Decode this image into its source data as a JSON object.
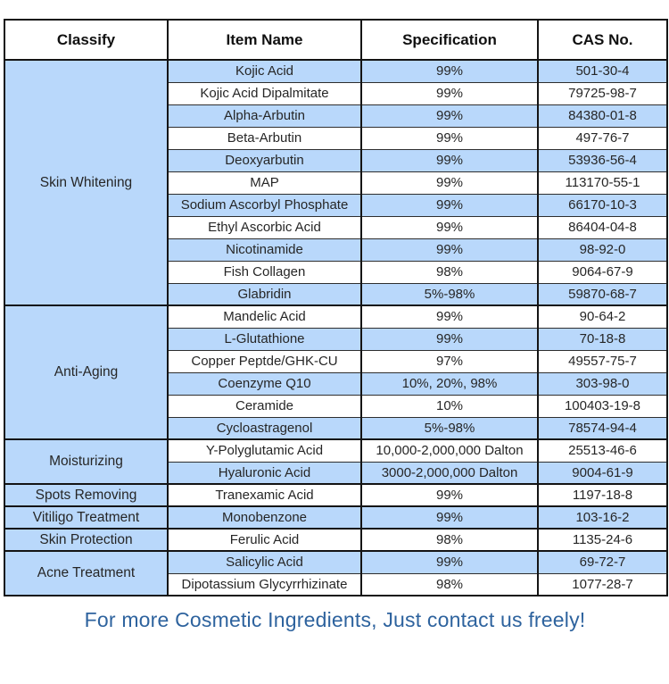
{
  "table": {
    "columns": [
      "Classify",
      "Item Name",
      "Specification",
      "CAS No."
    ],
    "groups": [
      {
        "classify": "Skin Whitening",
        "rows": [
          [
            "Kojic Acid",
            "99%",
            "501-30-4"
          ],
          [
            "Kojic Acid Dipalmitate",
            "99%",
            "79725-98-7"
          ],
          [
            "Alpha-Arbutin",
            "99%",
            "84380-01-8"
          ],
          [
            "Beta-Arbutin",
            "99%",
            "497-76-7"
          ],
          [
            "Deoxyarbutin",
            "99%",
            "53936-56-4"
          ],
          [
            "MAP",
            "99%",
            "113170-55-1"
          ],
          [
            "Sodium Ascorbyl Phosphate",
            "99%",
            "66170-10-3"
          ],
          [
            "Ethyl Ascorbic Acid",
            "99%",
            "86404-04-8"
          ],
          [
            "Nicotinamide",
            "99%",
            "98-92-0"
          ],
          [
            "Fish Collagen",
            "98%",
            "9064-67-9"
          ],
          [
            "Glabridin",
            "5%-98%",
            "59870-68-7"
          ]
        ]
      },
      {
        "classify": "Anti-Aging",
        "rows": [
          [
            "Mandelic Acid",
            "99%",
            "90-64-2"
          ],
          [
            "L-Glutathione",
            "99%",
            "70-18-8"
          ],
          [
            "Copper Peptde/GHK-CU",
            "97%",
            "49557-75-7"
          ],
          [
            "Coenzyme Q10",
            "10%, 20%, 98%",
            "303-98-0"
          ],
          [
            "Ceramide",
            "10%",
            "100403-19-8"
          ],
          [
            "Cycloastragenol",
            "5%-98%",
            "78574-94-4"
          ]
        ]
      },
      {
        "classify": "Moisturizing",
        "rows": [
          [
            "Y-Polyglutamic Acid",
            "10,000-2,000,000 Dalton",
            "25513-46-6"
          ],
          [
            "Hyaluronic Acid",
            "3000-2,000,000 Dalton",
            "9004-61-9"
          ]
        ]
      },
      {
        "classify": "Spots Removing",
        "rows": [
          [
            "Tranexamic Acid",
            "99%",
            "1197-18-8"
          ]
        ]
      },
      {
        "classify": "Vitiligo Treatment",
        "rows": [
          [
            "Monobenzone",
            "99%",
            "103-16-2"
          ]
        ]
      },
      {
        "classify": "Skin Protection",
        "rows": [
          [
            "Ferulic Acid",
            "98%",
            "1135-24-6"
          ]
        ]
      },
      {
        "classify": "Acne Treatment",
        "rows": [
          [
            "Salicylic Acid",
            "99%",
            "69-72-7"
          ],
          [
            "Dipotassium Glycyrrhizinate",
            "98%",
            "1077-28-7"
          ]
        ]
      }
    ]
  },
  "footer": {
    "text": "For more Cosmetic Ingredients, Just contact us freely!"
  },
  "colors": {
    "row_blue": "#B9D8FB",
    "row_white": "#FFFFFF",
    "border_dark": "#141414",
    "footer_text": "#2E639E"
  }
}
